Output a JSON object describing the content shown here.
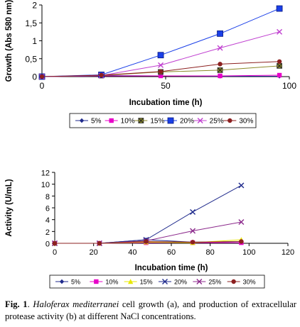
{
  "chart_data": [
    {
      "type": "line",
      "panel": "a",
      "ylabel": "Growth (Abs 580 nm)",
      "xlabel": "Incubation time (h)",
      "xlim": [
        0,
        100
      ],
      "ylim": [
        0,
        2
      ],
      "xticks": [
        "0",
        "50",
        "100"
      ],
      "yticks": [
        "0",
        "0,5",
        "1",
        "1,5",
        "2"
      ],
      "grid": false,
      "legend": "bottom",
      "x": [
        0,
        24,
        48,
        72,
        96
      ],
      "series": [
        {
          "name": "5%",
          "color": "#1f2a8c",
          "marker": "diamond",
          "values": [
            0,
            0.03,
            0.02,
            0.01,
            0.01
          ]
        },
        {
          "name": "10%",
          "color": "#e800c8",
          "marker": "square",
          "values": [
            0,
            0.02,
            0.02,
            0.02,
            0.04
          ]
        },
        {
          "name": "15%",
          "color": "#8c8a2a",
          "marker": "xsquare",
          "values": [
            0,
            0.03,
            0.13,
            0.18,
            0.3
          ]
        },
        {
          "name": "20%",
          "color": "#1a3fe8",
          "marker": "bigsquare",
          "values": [
            0,
            0.05,
            0.6,
            1.2,
            1.9
          ]
        },
        {
          "name": "25%",
          "color": "#c040d0",
          "marker": "x",
          "values": [
            0,
            0.03,
            0.32,
            0.8,
            1.25
          ]
        },
        {
          "name": "30%",
          "color": "#8c2020",
          "marker": "circle",
          "values": [
            0,
            0.04,
            0.14,
            0.35,
            0.42
          ]
        }
      ]
    },
    {
      "type": "line",
      "panel": "b",
      "ylabel": "Activity (U/mL)",
      "xlabel": "Incubation time (h)",
      "xlim": [
        0,
        120
      ],
      "ylim": [
        0,
        12
      ],
      "xticks": [
        "0",
        "20",
        "40",
        "60",
        "80",
        "100",
        "120"
      ],
      "yticks": [
        "0",
        "2",
        "4",
        "6",
        "8",
        "10",
        "12"
      ],
      "grid": false,
      "legend": "bottom",
      "x": [
        0,
        23,
        47,
        71,
        96
      ],
      "series": [
        {
          "name": "5%",
          "color": "#1f2a8c",
          "marker": "diamond",
          "values": [
            0,
            0,
            0.6,
            0.2,
            0.3
          ]
        },
        {
          "name": "10%",
          "color": "#e800c8",
          "marker": "square",
          "values": [
            0,
            0,
            0.1,
            0.1,
            0.1
          ]
        },
        {
          "name": "15%",
          "color": "#e8e800",
          "marker": "triangle",
          "values": [
            0,
            0,
            0.2,
            0.1,
            0.6
          ]
        },
        {
          "name": "20%",
          "color": "#1f2a8c",
          "marker": "x",
          "values": [
            0,
            0,
            0.6,
            5.3,
            9.8
          ]
        },
        {
          "name": "25%",
          "color": "#8c2a8c",
          "marker": "x",
          "values": [
            0,
            0,
            0.4,
            2.1,
            3.6
          ]
        },
        {
          "name": "30%",
          "color": "#8c2020",
          "marker": "circle",
          "values": [
            0,
            0,
            0.3,
            0.2,
            0.3
          ]
        }
      ]
    }
  ],
  "caption": {
    "label": "Fig. 1",
    "species": "Haloferax mediterranei",
    "text": " cell growth (a), and production of extracellular protease activity (b) at different NaCl concentrations."
  }
}
